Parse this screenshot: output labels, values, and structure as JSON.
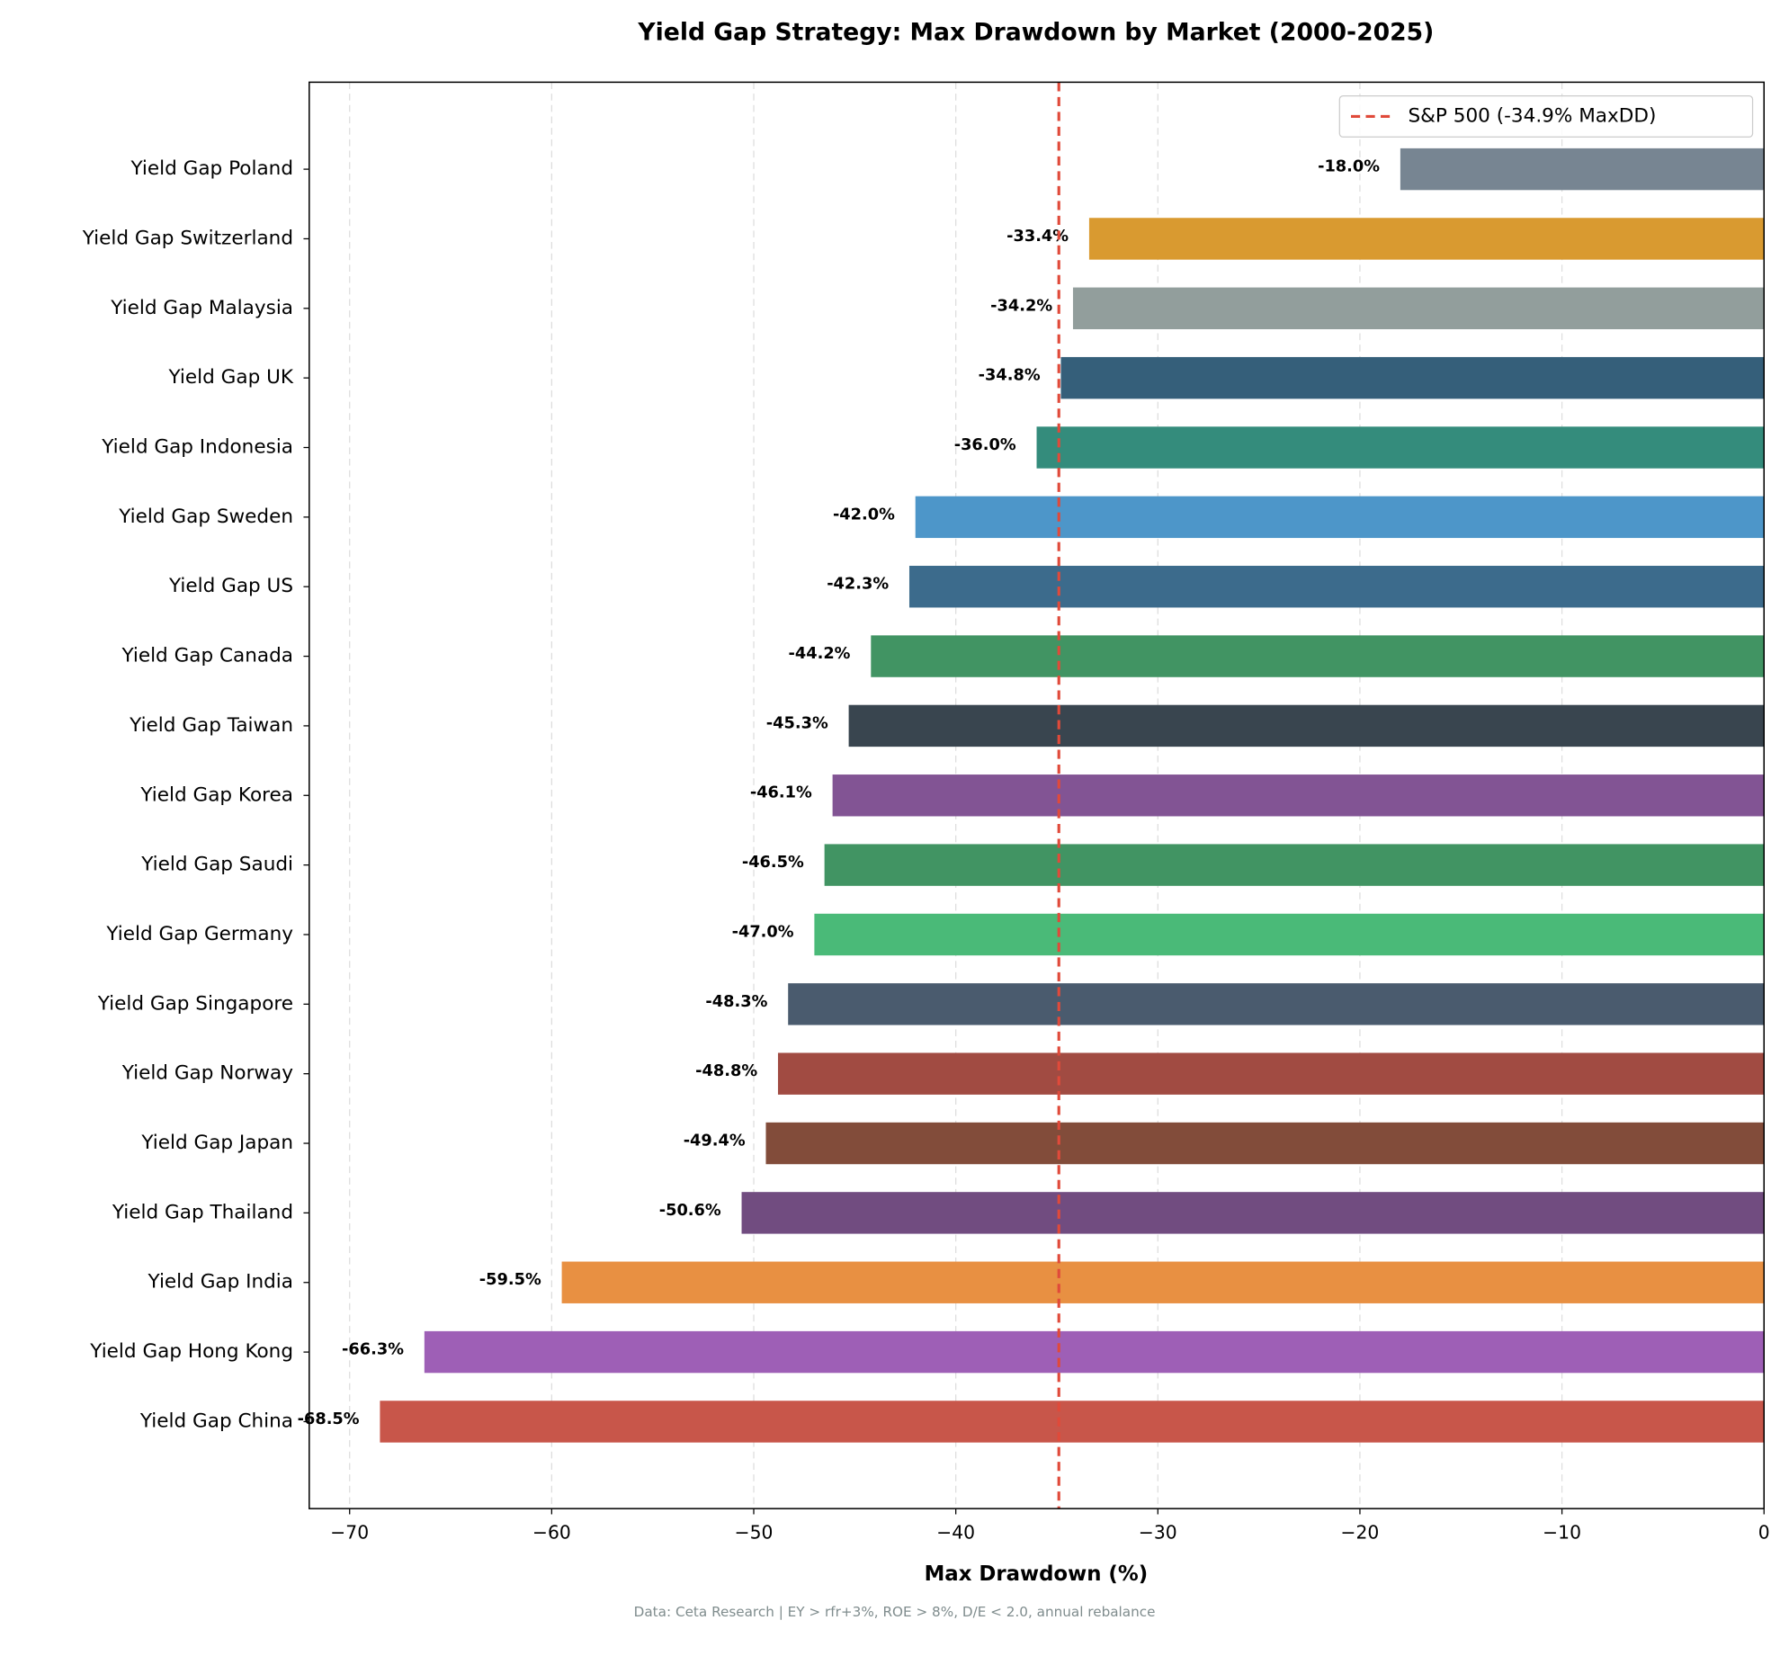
{
  "chart_data": {
    "type": "bar",
    "orientation": "horizontal",
    "title": "Yield Gap Strategy: Max Drawdown by Market (2000-2025)",
    "x_label": "Max Drawdown (%)",
    "footnote": "Data: Ceta Research | EY > rfr+3%, ROE > 8%, D/E < 2.0, annual rebalance",
    "categories": [
      "Yield Gap Poland",
      "Yield Gap Switzerland",
      "Yield Gap Malaysia",
      "Yield Gap UK",
      "Yield Gap Indonesia",
      "Yield Gap Sweden",
      "Yield Gap US",
      "Yield Gap Canada",
      "Yield Gap Taiwan",
      "Yield Gap Korea",
      "Yield Gap Saudi",
      "Yield Gap Germany",
      "Yield Gap Singapore",
      "Yield Gap Norway",
      "Yield Gap Japan",
      "Yield Gap Thailand",
      "Yield Gap India",
      "Yield Gap Hong Kong",
      "Yield Gap China"
    ],
    "values": [
      -18.0,
      -33.4,
      -34.2,
      -34.8,
      -36.0,
      -42.0,
      -42.3,
      -44.2,
      -45.3,
      -46.1,
      -46.5,
      -47.0,
      -48.3,
      -48.8,
      -49.4,
      -50.6,
      -59.5,
      -66.3,
      -68.5
    ],
    "value_labels": [
      "-18.0%",
      "-33.4%",
      "-34.2%",
      "-34.8%",
      "-36.0%",
      "-42.0%",
      "-42.3%",
      "-44.2%",
      "-45.3%",
      "-46.1%",
      "-46.5%",
      "-47.0%",
      "-48.3%",
      "-48.8%",
      "-49.4%",
      "-50.6%",
      "-59.5%",
      "-66.3%",
      "-68.5%"
    ],
    "colors": [
      "#778592",
      "#d99a30",
      "#929e9c",
      "#355f7a",
      "#348c7c",
      "#4d96c9",
      "#3c6b8c",
      "#419463",
      "#39454f",
      "#825494",
      "#419463",
      "#4aba78",
      "#4a5b6e",
      "#a14b42",
      "#824c3a",
      "#714c80",
      "#e89042",
      "#9e5fb6",
      "#c8564a"
    ],
    "xlim": [
      -72,
      0
    ],
    "xticks": [
      {
        "value": -70,
        "label": "−70"
      },
      {
        "value": -60,
        "label": "−60"
      },
      {
        "value": -50,
        "label": "−50"
      },
      {
        "value": -40,
        "label": "−40"
      },
      {
        "value": -30,
        "label": "−30"
      },
      {
        "value": -20,
        "label": "−20"
      },
      {
        "value": -10,
        "label": "−10"
      },
      0
    ],
    "grid": true,
    "reference_line": {
      "value": -34.9,
      "label": "S&P 500 (-34.9% MaxDD)",
      "color": "#e04a3a"
    },
    "legend_position": "upper right"
  }
}
